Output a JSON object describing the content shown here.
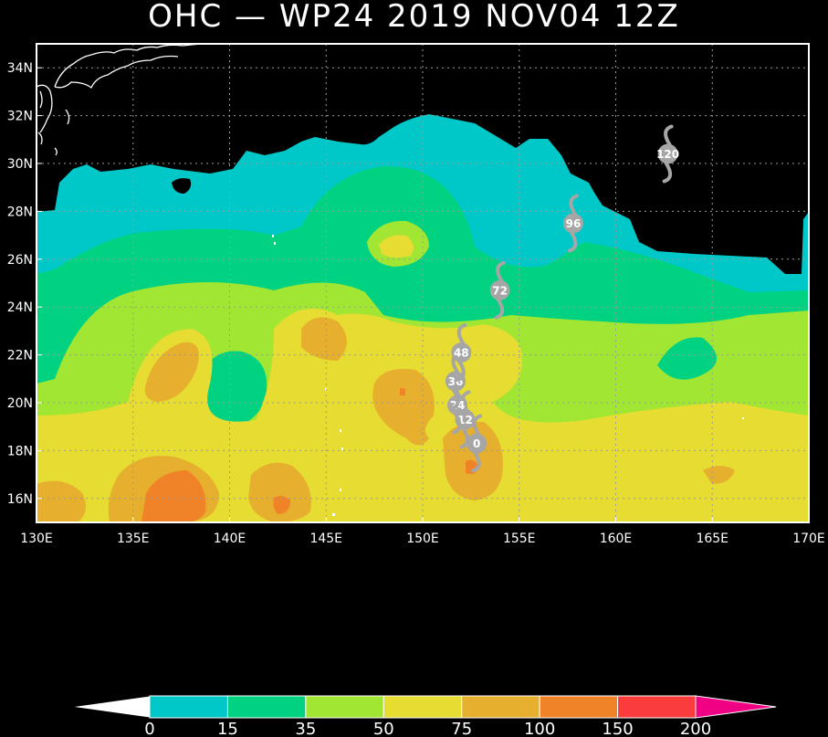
{
  "title": "OHC — WP24 2019 NOV04 12Z",
  "colors": {
    "land": "#000000",
    "c0": "#00c8c8",
    "c15": "#00d282",
    "c35": "#a0e632",
    "c50": "#e6dc32",
    "c75": "#e6af2d",
    "c100": "#f08228",
    "c150": "#fa3c3c",
    "c200": "#f00082",
    "track": "#a6a6a6",
    "coast": "#ffffff",
    "grid": "#888888"
  },
  "chart_data": {
    "type": "heatmap",
    "xlabel": "",
    "ylabel": "",
    "xlim": [
      130,
      170
    ],
    "ylim": [
      15,
      35
    ],
    "x_ticks": [
      "130E",
      "135E",
      "140E",
      "145E",
      "150E",
      "155E",
      "160E",
      "165E",
      "170E"
    ],
    "y_ticks": [
      "16N",
      "18N",
      "20N",
      "22N",
      "24N",
      "26N",
      "28N",
      "30N",
      "32N",
      "34N"
    ],
    "grid": true,
    "colorbar": {
      "labels": [
        "0",
        "15",
        "35",
        "50",
        "75",
        "100",
        "150",
        "200"
      ],
      "bins": [
        {
          "from": 0,
          "to": 15,
          "color": "#00c8c8"
        },
        {
          "from": 15,
          "to": 35,
          "color": "#00d282"
        },
        {
          "from": 35,
          "to": 50,
          "color": "#a0e632"
        },
        {
          "from": 50,
          "to": 75,
          "color": "#e6dc32"
        },
        {
          "from": 75,
          "to": 100,
          "color": "#e6af2d"
        },
        {
          "from": 100,
          "to": 150,
          "color": "#f08228"
        },
        {
          "from": 150,
          "to": 200,
          "color": "#fa3c3c"
        }
      ],
      "under_color": "#ffffff",
      "over_color": "#f00082"
    },
    "track_points": [
      {
        "label": "0",
        "lon": 152.8,
        "lat": 18.3
      },
      {
        "label": "12",
        "lon": 152.2,
        "lat": 19.3
      },
      {
        "label": "24",
        "lon": 151.8,
        "lat": 19.9
      },
      {
        "label": "36",
        "lon": 151.7,
        "lat": 20.9
      },
      {
        "label": "48",
        "lon": 152.0,
        "lat": 22.1
      },
      {
        "label": "72",
        "lon": 154.0,
        "lat": 24.7
      },
      {
        "label": "96",
        "lon": 157.8,
        "lat": 27.5
      },
      {
        "label": "120",
        "lon": 162.7,
        "lat": 30.4
      }
    ]
  }
}
